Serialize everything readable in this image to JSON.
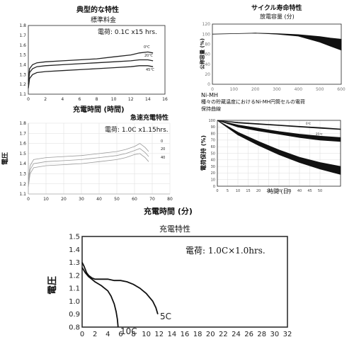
{
  "chart_data": [
    {
      "type": "line",
      "title": "典型的な特性",
      "subtitle": "標準料金",
      "annotation": "電荷: 0.1C x15 hrs.",
      "xlabel": "充電時間 (時間)",
      "ylabel": "",
      "xlim": [
        0,
        16
      ],
      "ylim": [
        1.1,
        1.8
      ],
      "xticks": [
        "0",
        "2",
        "4",
        "6",
        "8",
        "10",
        "12",
        "14",
        "16"
      ],
      "yticks": [
        "1.1",
        "1.2",
        "1.3",
        "1.4",
        "1.5",
        "1.6",
        "1.7",
        "1.8"
      ],
      "series": [
        {
          "name": "0℃",
          "x": [
            0,
            0.15,
            0.5,
            1,
            2,
            4,
            6,
            8,
            10,
            12,
            13,
            14,
            14.6
          ],
          "y": [
            1.24,
            1.36,
            1.4,
            1.42,
            1.43,
            1.44,
            1.45,
            1.46,
            1.48,
            1.5,
            1.52,
            1.53,
            1.52
          ]
        },
        {
          "name": "20℃",
          "x": [
            0,
            0.15,
            0.5,
            1,
            2,
            4,
            6,
            8,
            10,
            12,
            13,
            14,
            14.6
          ],
          "y": [
            1.2,
            1.32,
            1.36,
            1.38,
            1.39,
            1.4,
            1.41,
            1.42,
            1.43,
            1.44,
            1.45,
            1.45,
            1.44
          ]
        },
        {
          "name": "45℃",
          "x": [
            0,
            0.15,
            0.5,
            1,
            2,
            4,
            6,
            8,
            10,
            12,
            13,
            14,
            14.6
          ],
          "y": [
            1.16,
            1.26,
            1.3,
            1.32,
            1.33,
            1.34,
            1.35,
            1.36,
            1.37,
            1.38,
            1.39,
            1.39,
            1.38
          ]
        }
      ]
    },
    {
      "type": "area",
      "title": "サイクル寿命特性",
      "subtitle": "放電容量 (分)",
      "xlabel": "",
      "ylabel": "公称容量 (%)",
      "xlim": [
        0,
        600
      ],
      "ylim": [
        0,
        120
      ],
      "xticks": [
        "0",
        "100",
        "200",
        "300",
        "400",
        "500",
        "600"
      ],
      "yticks": [
        "0",
        "20",
        "40",
        "60",
        "80",
        "100",
        "120"
      ],
      "series": [
        {
          "name": "",
          "x": [
            0,
            100,
            200,
            300,
            400,
            450,
            500,
            550,
            600
          ],
          "upper": [
            100,
            101,
            102,
            101,
            99,
            97,
            95,
            92,
            90
          ],
          "lower": [
            100,
            101,
            102,
            100,
            96,
            90,
            84,
            76,
            68
          ]
        }
      ]
    },
    {
      "type": "line",
      "title": "急速充電特性",
      "annotation": "電荷: 1.0C x1.15hrs.",
      "xlabel": "",
      "ylabel": "電圧",
      "xlim": [
        0,
        80
      ],
      "ylim": [
        1.1,
        1.8
      ],
      "xticks": [
        "0",
        "10",
        "20",
        "30",
        "40",
        "50",
        "60",
        "70",
        "80"
      ],
      "yticks": [
        "1.1",
        "1.2",
        "1.3",
        "1.4",
        "1.5",
        "1.6",
        "1.7",
        "1.8"
      ],
      "series": [
        {
          "name": "0",
          "x": [
            0,
            1,
            3,
            10,
            20,
            30,
            40,
            50,
            55,
            60,
            63,
            66,
            68
          ],
          "y": [
            1.25,
            1.38,
            1.44,
            1.46,
            1.47,
            1.48,
            1.5,
            1.52,
            1.54,
            1.57,
            1.6,
            1.56,
            1.52
          ]
        },
        {
          "name": "20",
          "x": [
            0,
            1,
            3,
            10,
            20,
            30,
            40,
            50,
            55,
            60,
            63,
            66,
            68
          ],
          "y": [
            1.21,
            1.34,
            1.4,
            1.42,
            1.43,
            1.44,
            1.46,
            1.48,
            1.5,
            1.53,
            1.55,
            1.51,
            1.47
          ]
        },
        {
          "name": "40",
          "x": [
            0,
            1,
            3,
            10,
            20,
            30,
            40,
            50,
            55,
            60,
            63,
            66,
            68
          ],
          "y": [
            1.17,
            1.3,
            1.36,
            1.38,
            1.39,
            1.4,
            1.42,
            1.44,
            1.46,
            1.49,
            1.5,
            1.46,
            1.42
          ]
        }
      ]
    },
    {
      "type": "area",
      "title": "Ni-MH",
      "subtitle": "種々の貯蔵温度におけるNi-MH円筒セルの電荷",
      "subtitle2": "保持曲線",
      "xlabel": "時間 (日)",
      "ylabel": "電荷保持 (%)",
      "xlim": [
        0,
        60
      ],
      "ylim": [
        0,
        100
      ],
      "xticks": [
        "0",
        "5",
        "10",
        "15",
        "20",
        "25",
        "30",
        "35",
        "40",
        "45",
        "50"
      ],
      "yticks": [
        "0",
        "10",
        "20",
        "30",
        "40",
        "50",
        "60",
        "70",
        "80",
        "90",
        "100"
      ],
      "series": [
        {
          "name": "0℃",
          "x": [
            0,
            10,
            20,
            30,
            40,
            50,
            60
          ],
          "upper": [
            100,
            97,
            95,
            93,
            91,
            89,
            87
          ],
          "lower": [
            100,
            96,
            94,
            92,
            90,
            88,
            86
          ]
        },
        {
          "name": "25℃",
          "x": [
            0,
            10,
            20,
            30,
            40,
            50,
            60
          ],
          "upper": [
            100,
            93,
            88,
            83,
            79,
            76,
            74
          ],
          "lower": [
            100,
            90,
            84,
            79,
            74,
            70,
            68
          ]
        },
        {
          "name": "45℃",
          "x": [
            0,
            10,
            20,
            30,
            40,
            50,
            60
          ],
          "upper": [
            100,
            82,
            68,
            55,
            44,
            36,
            30
          ],
          "lower": [
            100,
            78,
            62,
            48,
            36,
            26,
            18
          ]
        }
      ]
    },
    {
      "type": "line",
      "title": "充電特性",
      "caption": "充電時間 (分)",
      "annotation": "電荷: 1.0C×1.0hrs.",
      "xlabel": "",
      "ylabel": "電圧",
      "xlim": [
        0,
        32
      ],
      "ylim": [
        0.8,
        1.5
      ],
      "xticks": [
        "0",
        "2",
        "4",
        "6",
        "8",
        "10",
        "12",
        "14",
        "16",
        "18",
        "20",
        "22",
        "24",
        "26",
        "28",
        "30",
        "32"
      ],
      "yticks": [
        "0.8",
        "0.9",
        "1.0",
        "1.1",
        "1.2",
        "1.3",
        "1.4",
        "1.5"
      ],
      "series": [
        {
          "name": "10C",
          "x": [
            0,
            0.5,
            1,
            1.5,
            2,
            3,
            4,
            4.5,
            5,
            5.3,
            5.5,
            5.6
          ],
          "y": [
            1.26,
            1.22,
            1.19,
            1.17,
            1.15,
            1.12,
            1.08,
            1.04,
            0.98,
            0.92,
            0.86,
            0.8
          ]
        },
        {
          "name": "5C",
          "x": [
            0,
            0.3,
            0.7,
            1,
            1.5,
            2,
            3,
            4,
            5,
            6,
            7,
            8,
            9,
            10,
            11,
            11.5,
            11.8
          ],
          "y": [
            1.3,
            1.27,
            1.22,
            1.2,
            1.18,
            1.17,
            1.17,
            1.17,
            1.16,
            1.16,
            1.15,
            1.13,
            1.1,
            1.06,
            1.0,
            0.95,
            0.9
          ]
        }
      ]
    }
  ]
}
